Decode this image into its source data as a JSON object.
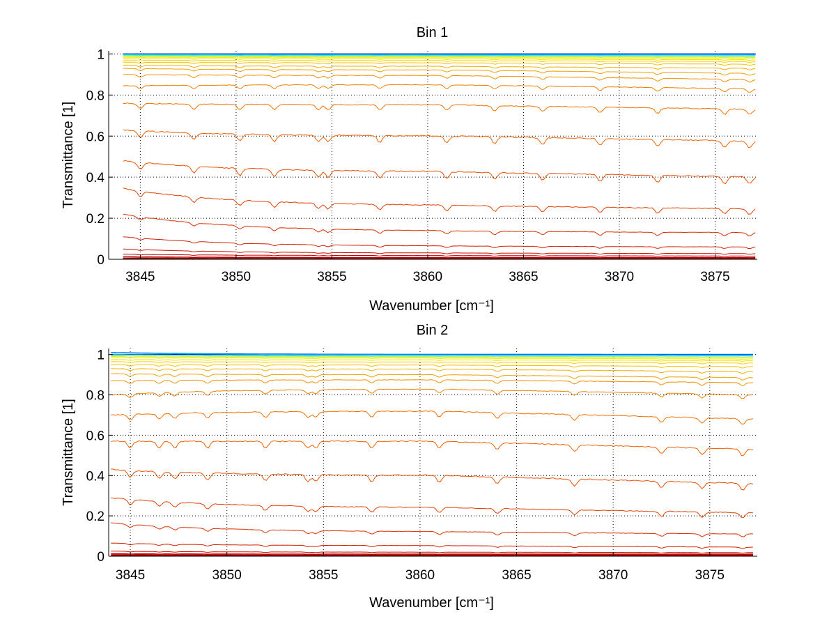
{
  "chart_data": [
    {
      "type": "line",
      "title": "Bin 1",
      "xlabel": "Wavenumber [cm⁻¹]",
      "ylabel": "Transmittance [1]",
      "xlim": [
        3843.35,
        3877.2
      ],
      "ylim": [
        0,
        1.015
      ],
      "xticks": [
        3845,
        3850,
        3855,
        3860,
        3865,
        3870,
        3875
      ],
      "yticks": [
        0,
        0.2,
        0.4,
        0.6,
        0.8,
        1
      ],
      "ytick_labels": [
        "0",
        "0.2",
        "0.4",
        "0.6",
        "0.8",
        "1"
      ],
      "grid": true,
      "x_range": [
        3844.1,
        3877.2
      ],
      "absorption_lines": [
        3845.0,
        3847.8,
        3850.2,
        3852.0,
        3854.3,
        3854.8,
        3857.5,
        3861.0,
        3863.5,
        3866.0,
        3869.0,
        3872.0,
        3875.5,
        3876.8
      ],
      "series": [
        {
          "start": 1.0,
          "mid": 1.0,
          "end": 1.0,
          "color": "#0010c0"
        },
        {
          "start": 1.0,
          "mid": 0.999,
          "end": 0.999,
          "color": "#0060ff"
        },
        {
          "start": 0.998,
          "mid": 0.996,
          "end": 0.996,
          "color": "#00b8ff"
        },
        {
          "start": 0.995,
          "mid": 0.993,
          "end": 0.992,
          "color": "#30e0d0"
        },
        {
          "start": 0.992,
          "mid": 0.99,
          "end": 0.988,
          "color": "#90f070"
        },
        {
          "start": 0.988,
          "mid": 0.986,
          "end": 0.984,
          "color": "#d0f020"
        },
        {
          "start": 0.984,
          "mid": 0.982,
          "end": 0.979,
          "color": "#f0f000"
        },
        {
          "start": 0.978,
          "mid": 0.976,
          "end": 0.972,
          "color": "#f8e000"
        },
        {
          "start": 0.97,
          "mid": 0.968,
          "end": 0.963,
          "color": "#f8d000"
        },
        {
          "start": 0.96,
          "mid": 0.957,
          "end": 0.95,
          "color": "#f8c000"
        },
        {
          "start": 0.945,
          "mid": 0.94,
          "end": 0.93,
          "color": "#f0b000"
        },
        {
          "start": 0.93,
          "mid": 0.922,
          "end": 0.905,
          "color": "#f0a000"
        },
        {
          "start": 0.9,
          "mid": 0.895,
          "end": 0.875,
          "color": "#f09000"
        },
        {
          "start": 0.845,
          "mid": 0.85,
          "end": 0.83,
          "color": "#f08000"
        },
        {
          "start": 0.76,
          "mid": 0.752,
          "end": 0.73,
          "color": "#f07000"
        },
        {
          "start": 0.63,
          "mid": 0.6,
          "end": 0.575,
          "color": "#f06000"
        },
        {
          "start": 0.48,
          "mid": 0.425,
          "end": 0.4,
          "color": "#e85000"
        },
        {
          "start": 0.345,
          "mid": 0.26,
          "end": 0.245,
          "color": "#e04000"
        },
        {
          "start": 0.22,
          "mid": 0.135,
          "end": 0.13,
          "color": "#d83000"
        },
        {
          "start": 0.11,
          "mid": 0.063,
          "end": 0.06,
          "color": "#d02000"
        },
        {
          "start": 0.05,
          "mid": 0.03,
          "end": 0.028,
          "color": "#c81000"
        },
        {
          "start": 0.025,
          "mid": 0.018,
          "end": 0.016,
          "color": "#c00000"
        },
        {
          "start": 0.012,
          "mid": 0.008,
          "end": 0.008,
          "color": "#b00000"
        },
        {
          "start": 0.005,
          "mid": 0.003,
          "end": 0.003,
          "color": "#a00000"
        },
        {
          "start": 0.001,
          "mid": 0.001,
          "end": 0.001,
          "color": "#900000"
        }
      ]
    },
    {
      "type": "line",
      "title": "Bin 2",
      "xlabel": "Wavenumber [cm⁻¹]",
      "ylabel": "Transmittance [1]",
      "xlim": [
        3843.88,
        3877.46
      ],
      "ylim": [
        0,
        1.03
      ],
      "xticks": [
        3845,
        3850,
        3855,
        3860,
        3865,
        3870,
        3875
      ],
      "yticks": [
        0,
        0.2,
        0.4,
        0.6,
        0.8,
        1
      ],
      "ytick_labels": [
        "0",
        "0.2",
        "0.4",
        "0.6",
        "0.8",
        "1"
      ],
      "grid": true,
      "x_range": [
        3844.0,
        3877.3
      ],
      "absorption_lines": [
        3845.0,
        3846.5,
        3847.3,
        3849.0,
        3852.0,
        3854.2,
        3854.6,
        3857.5,
        3861.0,
        3864.0,
        3868.0,
        3872.5,
        3874.6,
        3876.7
      ],
      "series": [
        {
          "start": 1.0,
          "mid": 1.0,
          "end": 1.0,
          "color": "#0010c0"
        },
        {
          "start": 1.01,
          "mid": 1.0,
          "end": 1.0,
          "color": "#0060ff"
        },
        {
          "start": 1.01,
          "mid": 0.998,
          "end": 0.997,
          "color": "#00b8ff"
        },
        {
          "start": 1.0,
          "mid": 0.995,
          "end": 0.994,
          "color": "#30e0d0"
        },
        {
          "start": 0.995,
          "mid": 0.991,
          "end": 0.989,
          "color": "#90f070"
        },
        {
          "start": 0.99,
          "mid": 0.987,
          "end": 0.984,
          "color": "#d0f020"
        },
        {
          "start": 0.985,
          "mid": 0.982,
          "end": 0.978,
          "color": "#f0f000"
        },
        {
          "start": 0.975,
          "mid": 0.974,
          "end": 0.97,
          "color": "#f8e000"
        },
        {
          "start": 0.965,
          "mid": 0.963,
          "end": 0.958,
          "color": "#f8d000"
        },
        {
          "start": 0.95,
          "mid": 0.948,
          "end": 0.94,
          "color": "#f8c000"
        },
        {
          "start": 0.93,
          "mid": 0.928,
          "end": 0.915,
          "color": "#f0b000"
        },
        {
          "start": 0.905,
          "mid": 0.9,
          "end": 0.885,
          "color": "#f0a000"
        },
        {
          "start": 0.87,
          "mid": 0.875,
          "end": 0.86,
          "color": "#f09000"
        },
        {
          "start": 0.8,
          "mid": 0.83,
          "end": 0.8,
          "color": "#f08000"
        },
        {
          "start": 0.7,
          "mid": 0.72,
          "end": 0.68,
          "color": "#f07000"
        },
        {
          "start": 0.57,
          "mid": 0.57,
          "end": 0.53,
          "color": "#f06000"
        },
        {
          "start": 0.43,
          "mid": 0.4,
          "end": 0.36,
          "color": "#e85000"
        },
        {
          "start": 0.29,
          "mid": 0.24,
          "end": 0.215,
          "color": "#e04000"
        },
        {
          "start": 0.165,
          "mid": 0.12,
          "end": 0.11,
          "color": "#d83000"
        },
        {
          "start": 0.065,
          "mid": 0.052,
          "end": 0.045,
          "color": "#d02000"
        },
        {
          "start": 0.025,
          "mid": 0.02,
          "end": 0.018,
          "color": "#c81000"
        },
        {
          "start": 0.012,
          "mid": 0.01,
          "end": 0.01,
          "color": "#c00000"
        },
        {
          "start": 0.006,
          "mid": 0.005,
          "end": 0.005,
          "color": "#b00000"
        },
        {
          "start": 0.002,
          "mid": 0.002,
          "end": 0.002,
          "color": "#a00000"
        }
      ]
    }
  ]
}
